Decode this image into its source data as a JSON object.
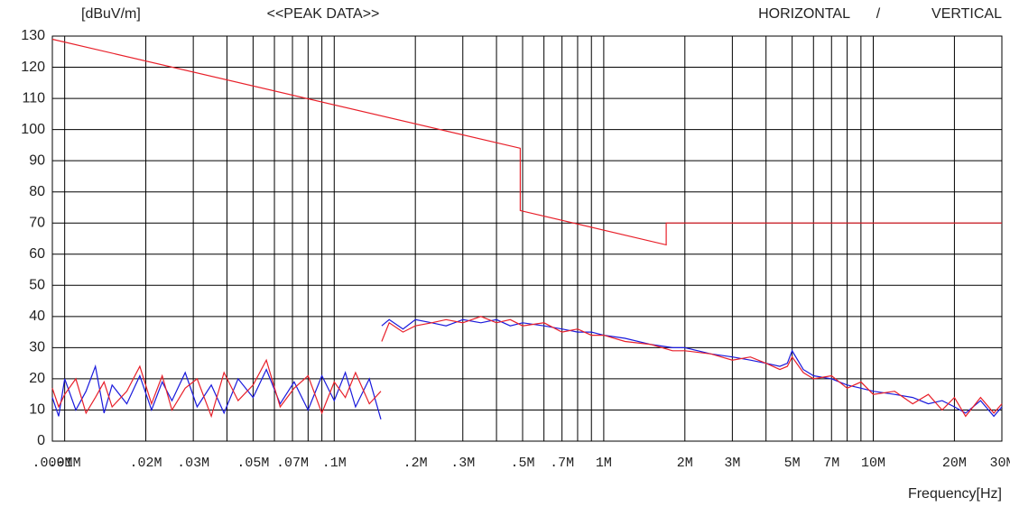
{
  "chart_data": {
    "type": "line",
    "title": "<<PEAK DATA>>",
    "y_label": "[dBuV/m]",
    "x_label": "Frequency[Hz]",
    "legend_separator": "/",
    "x_scale": "log",
    "grid": true,
    "xlim": [
      0.009,
      30
    ],
    "ylim": [
      0,
      130
    ],
    "yticks": [
      0,
      10,
      20,
      30,
      40,
      50,
      60,
      70,
      80,
      90,
      100,
      110,
      120,
      130
    ],
    "xticks": [
      {
        "value": 0.009,
        "label": ".009M"
      },
      {
        "value": 0.01,
        "label": ".01M"
      },
      {
        "value": 0.02,
        "label": ".02M"
      },
      {
        "value": 0.03,
        "label": ".03M"
      },
      {
        "value": 0.05,
        "label": ".05M"
      },
      {
        "value": 0.07,
        "label": ".07M"
      },
      {
        "value": 0.1,
        "label": ".1M"
      },
      {
        "value": 0.2,
        "label": ".2M"
      },
      {
        "value": 0.3,
        "label": ".3M"
      },
      {
        "value": 0.5,
        "label": ".5M"
      },
      {
        "value": 0.7,
        "label": ".7M"
      },
      {
        "value": 1,
        "label": "1M"
      },
      {
        "value": 2,
        "label": "2M"
      },
      {
        "value": 3,
        "label": "3M"
      },
      {
        "value": 5,
        "label": "5M"
      },
      {
        "value": 7,
        "label": "7M"
      },
      {
        "value": 10,
        "label": "10M"
      },
      {
        "value": 20,
        "label": "20M"
      },
      {
        "value": 30,
        "label": "30M"
      }
    ],
    "minor_xticks": [
      0.04,
      0.06,
      0.08,
      0.09,
      0.4,
      0.6,
      0.8,
      0.9,
      4,
      6,
      8,
      9
    ],
    "x": [
      0.009,
      0.0095,
      0.01,
      0.011,
      0.012,
      0.013,
      0.014,
      0.015,
      0.017,
      0.019,
      0.021,
      0.023,
      0.025,
      0.028,
      0.031,
      0.035,
      0.039,
      0.044,
      0.05,
      0.056,
      0.063,
      0.071,
      0.08,
      0.09,
      0.1,
      0.11,
      0.12,
      0.135,
      0.149,
      0.1495,
      0.15,
      0.16,
      0.18,
      0.2,
      0.23,
      0.26,
      0.3,
      0.35,
      0.4,
      0.45,
      0.5,
      0.6,
      0.7,
      0.8,
      0.9,
      1,
      1.2,
      1.5,
      1.8,
      2,
      2.5,
      3,
      3.5,
      4,
      4.5,
      4.8,
      5,
      5.5,
      6,
      7,
      8,
      9,
      10,
      12,
      14,
      16,
      18,
      20,
      22,
      25,
      28,
      30
    ],
    "series": [
      {
        "name": "HORIZONTAL",
        "color": "#1a1adc",
        "values": [
          14,
          8,
          20,
          10,
          16,
          24,
          9,
          18,
          12,
          21,
          10,
          19,
          13,
          22,
          11,
          18,
          9,
          20,
          14,
          23,
          12,
          19,
          10,
          21,
          13,
          22,
          11,
          20,
          7,
          null,
          37,
          39,
          36,
          39,
          38,
          37,
          39,
          38,
          39,
          37,
          38,
          37,
          36,
          35,
          35,
          34,
          33,
          31,
          30,
          30,
          28,
          27,
          26,
          25,
          24,
          25,
          29,
          23,
          21,
          20,
          18,
          17,
          16,
          15,
          14,
          12,
          13,
          11,
          9,
          13,
          8,
          11
        ]
      },
      {
        "name": "VERTICAL",
        "color": "#e8202a",
        "values": [
          17,
          11,
          15,
          20,
          9,
          14,
          19,
          11,
          16,
          24,
          12,
          21,
          10,
          17,
          20,
          8,
          22,
          13,
          18,
          26,
          11,
          17,
          21,
          9,
          19,
          14,
          22,
          12,
          16,
          null,
          32,
          38,
          35,
          37,
          38,
          39,
          38,
          40,
          38,
          39,
          37,
          38,
          35,
          36,
          34,
          34,
          32,
          31,
          29,
          29,
          28,
          26,
          27,
          25,
          23,
          24,
          27,
          22,
          20,
          21,
          17,
          19,
          15,
          16,
          12,
          15,
          10,
          14,
          8,
          14,
          9,
          12
        ]
      }
    ],
    "limit_line": {
      "color": "#e8202a",
      "x": [
        0.009,
        0.49,
        0.49,
        1.705,
        1.705,
        30
      ],
      "values": [
        129,
        94,
        74,
        63,
        70,
        70
      ]
    }
  }
}
